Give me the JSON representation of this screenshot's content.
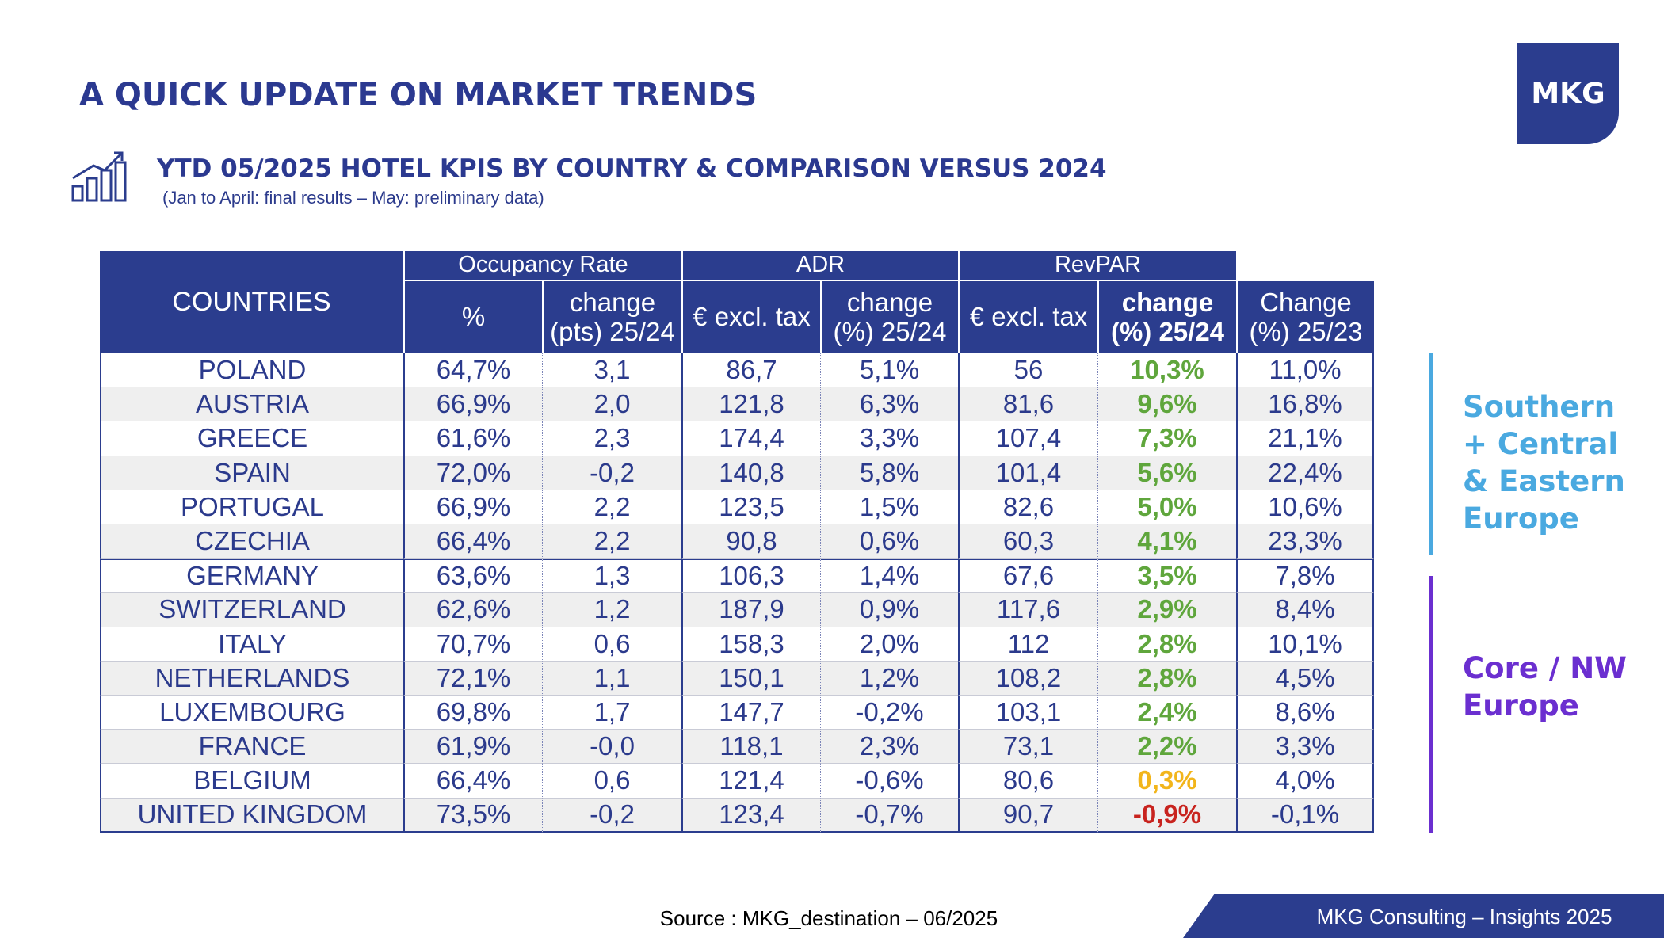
{
  "header": {
    "title": "A QUICK UPDATE ON MARKET TRENDS",
    "logo": "MKG",
    "subtitle": "YTD 05/2025 HOTEL KPIS BY COUNTRY & COMPARISON VERSUS 2024",
    "note": "(Jan to April: final results – May: preliminary data)"
  },
  "table": {
    "first_header": "COUNTRIES",
    "group_headers": [
      "Occupancy Rate",
      "ADR",
      "RevPAR"
    ],
    "sub_headers": [
      "%",
      "change\n(pts) 25/24",
      "€ excl. tax",
      "change\n(%) 25/24",
      "€ excl. tax",
      "change\n(%) 25/24",
      "Change\n(%) 25/23"
    ],
    "rows": [
      [
        "POLAND",
        "64,7%",
        "3,1",
        "86,7",
        "5,1%",
        "56",
        "10,3%",
        "11,0%"
      ],
      [
        "AUSTRIA",
        "66,9%",
        "2,0",
        "121,8",
        "6,3%",
        "81,6",
        "9,6%",
        "16,8%"
      ],
      [
        "GREECE",
        "61,6%",
        "2,3",
        "174,4",
        "3,3%",
        "107,4",
        "7,3%",
        "21,1%"
      ],
      [
        "SPAIN",
        "72,0%",
        "-0,2",
        "140,8",
        "5,8%",
        "101,4",
        "5,6%",
        "22,4%"
      ],
      [
        "PORTUGAL",
        "66,9%",
        "2,2",
        "123,5",
        "1,5%",
        "82,6",
        "5,0%",
        "10,6%"
      ],
      [
        "CZECHIA",
        "66,4%",
        "2,2",
        "90,8",
        "0,6%",
        "60,3",
        "4,1%",
        "23,3%"
      ],
      [
        "GERMANY",
        "63,6%",
        "1,3",
        "106,3",
        "1,4%",
        "67,6",
        "3,5%",
        "7,8%"
      ],
      [
        "SWITZERLAND",
        "62,6%",
        "1,2",
        "187,9",
        "0,9%",
        "117,6",
        "2,9%",
        "8,4%"
      ],
      [
        "ITALY",
        "70,7%",
        "0,6",
        "158,3",
        "2,0%",
        "112",
        "2,8%",
        "10,1%"
      ],
      [
        "NETHERLANDS",
        "72,1%",
        "1,1",
        "150,1",
        "1,2%",
        "108,2",
        "2,8%",
        "4,5%"
      ],
      [
        "LUXEMBOURG",
        "69,8%",
        "1,7",
        "147,7",
        "-0,2%",
        "103,1",
        "2,4%",
        "8,6%"
      ],
      [
        "FRANCE",
        "61,9%",
        "-0,0",
        "118,1",
        "2,3%",
        "73,1",
        "2,2%",
        "3,3%"
      ],
      [
        "BELGIUM",
        "66,4%",
        "0,6",
        "121,4",
        "-0,6%",
        "80,6",
        "0,3%",
        "4,0%"
      ],
      [
        "UNITED KINGDOM",
        "73,5%",
        "-0,2",
        "123,4",
        "-0,7%",
        "90,7",
        "-0,9%",
        "-0,1%"
      ]
    ],
    "highlight_colors": [
      "#5fa63c",
      "#5fa63c",
      "#5fa63c",
      "#5fa63c",
      "#5fa63c",
      "#5fa63c",
      "#5fa63c",
      "#5fa63c",
      "#5fa63c",
      "#5fa63c",
      "#5fa63c",
      "#5fa63c",
      "#f2b51b",
      "#c8231e"
    ]
  },
  "groups": [
    {
      "label": "Southern\n+ Central\n& Eastern\nEurope",
      "color": "#4aa9e0"
    },
    {
      "label": "Core / NW\nEurope",
      "color": "#6b2fd0"
    }
  ],
  "source": "Source : MKG_destination – 06/2025",
  "footer": "MKG Consulting – Insights 2025"
}
